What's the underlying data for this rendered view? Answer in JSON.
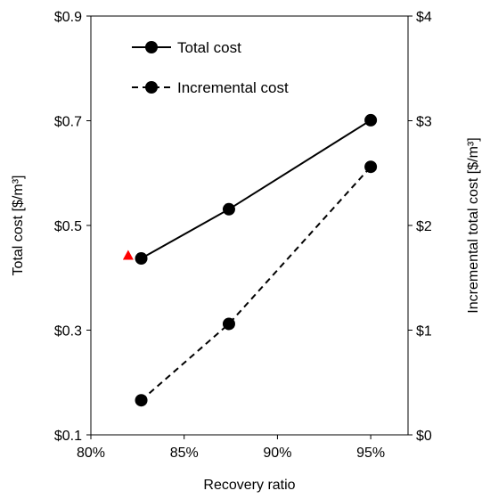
{
  "chart_data": {
    "type": "line",
    "xlabel": "Recovery ratio",
    "ylabel_left": "Total cost [$/m³]",
    "ylabel_right": "Incremental total  cost [$/m³]",
    "xlim": [
      0.8,
      0.97
    ],
    "ylim_left": [
      0.1,
      0.9
    ],
    "ylim_right": [
      0,
      4
    ],
    "x_ticks": [
      {
        "value": 0.8,
        "label": "80%"
      },
      {
        "value": 0.85,
        "label": "85%"
      },
      {
        "value": 0.9,
        "label": "90%"
      },
      {
        "value": 0.95,
        "label": "95%"
      }
    ],
    "y_left_ticks": [
      {
        "value": 0.1,
        "label": "$0.1"
      },
      {
        "value": 0.3,
        "label": "$0.3"
      },
      {
        "value": 0.5,
        "label": "$0.5"
      },
      {
        "value": 0.7,
        "label": "$0.7"
      },
      {
        "value": 0.9,
        "label": "$0.9"
      }
    ],
    "y_right_ticks": [
      {
        "value": 0,
        "label": "$0"
      },
      {
        "value": 1,
        "label": "$1"
      },
      {
        "value": 2,
        "label": "$2"
      },
      {
        "value": 3,
        "label": "$3"
      },
      {
        "value": 4,
        "label": "$4"
      }
    ],
    "series": [
      {
        "name": "Total cost",
        "axis": "left",
        "line_style": "solid",
        "color": "#000000",
        "x": [
          0.827,
          0.874,
          0.95
        ],
        "y": [
          0.437,
          0.531,
          0.701
        ]
      },
      {
        "name": "Incremental cost",
        "axis": "right",
        "line_style": "dashed",
        "color": "#000000",
        "x": [
          0.827,
          0.874,
          0.95
        ],
        "y": [
          0.33,
          1.06,
          2.56
        ]
      }
    ],
    "extra_points": [
      {
        "marker": "triangle",
        "color": "#ff0000",
        "axis": "left",
        "x": 0.82,
        "y": 0.443
      }
    ],
    "legend_position": "top-left"
  }
}
